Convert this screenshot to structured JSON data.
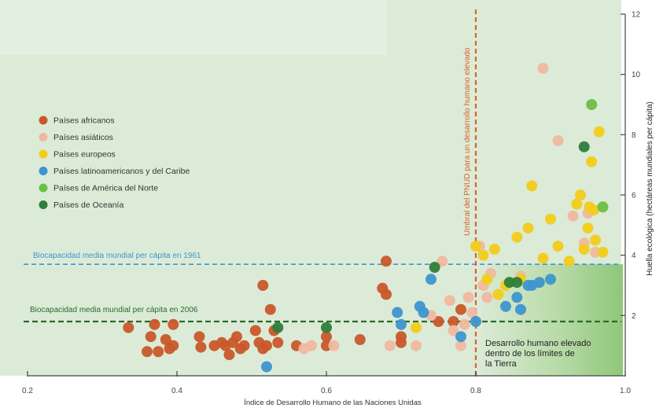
{
  "colors": {
    "background": "#dcebd8",
    "background_top_left": "#e3efe1",
    "africa": "#c8582a",
    "asia": "#f0b8a0",
    "europe": "#f2cc1a",
    "latam": "#3d96cf",
    "north_america": "#6cbf45",
    "oceania": "#2f7d3a",
    "pnud_line": "#d9622b",
    "biocap_1961": "#3d96cf",
    "biocap_2006": "#2a6a2a",
    "axis": "#444444"
  },
  "chart_data": {
    "type": "scatter",
    "xlabel": "Índice de Desarrollo Humano de las Naciones Unidas",
    "ylabel": "Huella ecológica (hectáreas mundiales per cápita)",
    "xlim": [
      0.2,
      1.0
    ],
    "ylim": [
      0,
      12
    ],
    "x_ticks": [
      "0.2",
      "0.4",
      "0.6",
      "0.8",
      "1.0"
    ],
    "x_tick_values": [
      0.2,
      0.4,
      0.6,
      0.8,
      1.0
    ],
    "y_ticks": [
      "2",
      "4",
      "6",
      "8",
      "10",
      "12"
    ],
    "y_tick_values": [
      2,
      4,
      6,
      8,
      10,
      12
    ],
    "y_axis_side": "right",
    "grid": false,
    "legend_position": "top-left",
    "legend": [
      {
        "label": "Países africanos",
        "key": "africa"
      },
      {
        "label": "Países asiáticos",
        "key": "asia"
      },
      {
        "label": "Países europeos",
        "key": "europe"
      },
      {
        "label": "Países latinoamericanos y del Caribe",
        "key": "latam"
      },
      {
        "label": "Países de América del Norte",
        "key": "north_america"
      },
      {
        "label": "Países de Oceanía",
        "key": "oceania"
      }
    ],
    "reference_lines": {
      "pnud_threshold": {
        "label": "Umbral del PNUD para un desarrollo humano elevado",
        "x": 0.8
      },
      "biocap_1961": {
        "label": "Biocapacidad media mundial per cápita en 1961",
        "y": 3.7
      },
      "biocap_2006": {
        "label": "Biocapacidad media mundial per cápita en 2006",
        "y": 1.8
      }
    },
    "region_label": [
      "Desarrollo humano elevado",
      "dentro de los límites de",
      "la Tierra"
    ],
    "series": [
      {
        "key": "africa",
        "points": [
          [
            0.335,
            1.6
          ],
          [
            0.36,
            0.8
          ],
          [
            0.365,
            1.3
          ],
          [
            0.37,
            1.7
          ],
          [
            0.375,
            0.8
          ],
          [
            0.385,
            1.2
          ],
          [
            0.39,
            0.9
          ],
          [
            0.395,
            1.7
          ],
          [
            0.395,
            1.0
          ],
          [
            0.43,
            1.3
          ],
          [
            0.432,
            0.95
          ],
          [
            0.45,
            1.0
          ],
          [
            0.46,
            1.1
          ],
          [
            0.465,
            1.0
          ],
          [
            0.47,
            0.7
          ],
          [
            0.475,
            1.1
          ],
          [
            0.48,
            1.3
          ],
          [
            0.485,
            0.9
          ],
          [
            0.49,
            1.0
          ],
          [
            0.505,
            1.5
          ],
          [
            0.51,
            1.1
          ],
          [
            0.515,
            0.9
          ],
          [
            0.515,
            3.0
          ],
          [
            0.52,
            1.0
          ],
          [
            0.525,
            2.2
          ],
          [
            0.53,
            1.5
          ],
          [
            0.535,
            1.1
          ],
          [
            0.56,
            1.0
          ],
          [
            0.6,
            1.0
          ],
          [
            0.6,
            1.3
          ],
          [
            0.645,
            1.2
          ],
          [
            0.675,
            2.9
          ],
          [
            0.68,
            2.7
          ],
          [
            0.68,
            3.8
          ],
          [
            0.7,
            1.3
          ],
          [
            0.7,
            1.1
          ],
          [
            0.75,
            1.8
          ],
          [
            0.77,
            1.8
          ],
          [
            0.78,
            2.2
          ]
        ]
      },
      {
        "key": "asia",
        "points": [
          [
            0.57,
            0.9
          ],
          [
            0.58,
            1.0
          ],
          [
            0.61,
            1.0
          ],
          [
            0.685,
            1.0
          ],
          [
            0.72,
            1.0
          ],
          [
            0.74,
            2.0
          ],
          [
            0.755,
            3.8
          ],
          [
            0.765,
            2.5
          ],
          [
            0.77,
            1.5
          ],
          [
            0.78,
            1.0
          ],
          [
            0.785,
            1.7
          ],
          [
            0.79,
            2.6
          ],
          [
            0.795,
            2.1
          ],
          [
            0.805,
            4.3
          ],
          [
            0.81,
            3.0
          ],
          [
            0.815,
            2.6
          ],
          [
            0.82,
            3.4
          ],
          [
            0.86,
            3.3
          ],
          [
            0.89,
            10.2
          ],
          [
            0.91,
            7.8
          ],
          [
            0.93,
            5.3
          ],
          [
            0.945,
            4.4
          ],
          [
            0.95,
            5.4
          ],
          [
            0.96,
            4.1
          ]
        ]
      },
      {
        "key": "europe",
        "points": [
          [
            0.72,
            1.6
          ],
          [
            0.8,
            4.3
          ],
          [
            0.81,
            4.0
          ],
          [
            0.815,
            3.2
          ],
          [
            0.825,
            4.2
          ],
          [
            0.83,
            2.7
          ],
          [
            0.84,
            3.0
          ],
          [
            0.855,
            4.6
          ],
          [
            0.86,
            3.2
          ],
          [
            0.87,
            4.9
          ],
          [
            0.875,
            6.3
          ],
          [
            0.885,
            3.1
          ],
          [
            0.89,
            3.9
          ],
          [
            0.9,
            5.2
          ],
          [
            0.91,
            4.3
          ],
          [
            0.925,
            3.8
          ],
          [
            0.935,
            5.7
          ],
          [
            0.94,
            6.0
          ],
          [
            0.945,
            4.2
          ],
          [
            0.95,
            4.9
          ],
          [
            0.952,
            5.6
          ],
          [
            0.955,
            7.1
          ],
          [
            0.958,
            5.5
          ],
          [
            0.96,
            4.5
          ],
          [
            0.965,
            8.1
          ],
          [
            0.97,
            4.1
          ]
        ]
      },
      {
        "key": "latam",
        "points": [
          [
            0.52,
            0.3
          ],
          [
            0.695,
            2.1
          ],
          [
            0.7,
            1.7
          ],
          [
            0.725,
            2.3
          ],
          [
            0.73,
            2.1
          ],
          [
            0.74,
            3.2
          ],
          [
            0.78,
            1.3
          ],
          [
            0.8,
            1.8
          ],
          [
            0.84,
            2.3
          ],
          [
            0.855,
            2.6
          ],
          [
            0.86,
            2.2
          ],
          [
            0.87,
            3.0
          ],
          [
            0.875,
            3.0
          ],
          [
            0.885,
            3.1
          ],
          [
            0.9,
            3.2
          ]
        ]
      },
      {
        "key": "north_america",
        "points": [
          [
            0.955,
            9.0
          ],
          [
            0.97,
            5.6
          ]
        ]
      },
      {
        "key": "oceania",
        "points": [
          [
            0.535,
            1.6
          ],
          [
            0.6,
            1.6
          ],
          [
            0.745,
            3.6
          ],
          [
            0.845,
            3.1
          ],
          [
            0.855,
            3.1
          ],
          [
            0.945,
            7.6
          ]
        ]
      }
    ]
  }
}
